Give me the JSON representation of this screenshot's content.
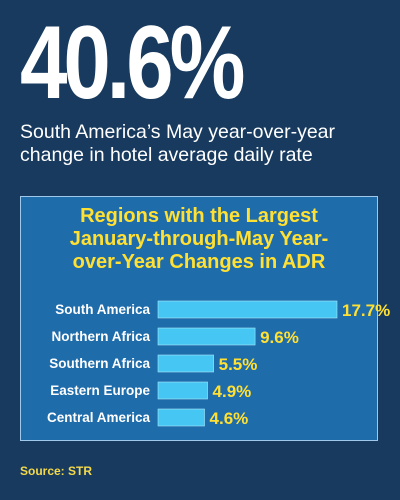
{
  "headline": {
    "value": "40.6%"
  },
  "subtitle": "South America’s May year-over-year change in hotel average daily rate",
  "panel": {
    "title_lines": [
      "Regions with the Largest",
      "January-through-May Year-",
      "over-Year Changes in ADR"
    ]
  },
  "chart_data": {
    "type": "bar",
    "orientation": "horizontal",
    "title": "Regions with the Largest January-through-May Year-over-Year Changes in ADR",
    "categories": [
      "South America",
      "Northern Africa",
      "Southern Africa",
      "Eastern Europe",
      "Central America"
    ],
    "values": [
      17.7,
      9.6,
      5.5,
      4.9,
      4.6
    ],
    "value_labels": [
      "17.7%",
      "9.6%",
      "5.5%",
      "4.9%",
      "4.6%"
    ],
    "unit": "%",
    "xlim": [
      0,
      17.7
    ],
    "grid": false,
    "legend": "none"
  },
  "source": "Source: STR",
  "colors": {
    "background": "#173a5e",
    "panel": "#1f6cab",
    "panel_border": "#9fc8ea",
    "bar": "#46c6f2",
    "value_label": "#ffe033",
    "title": "#ffe033",
    "source": "#f5d94a"
  }
}
